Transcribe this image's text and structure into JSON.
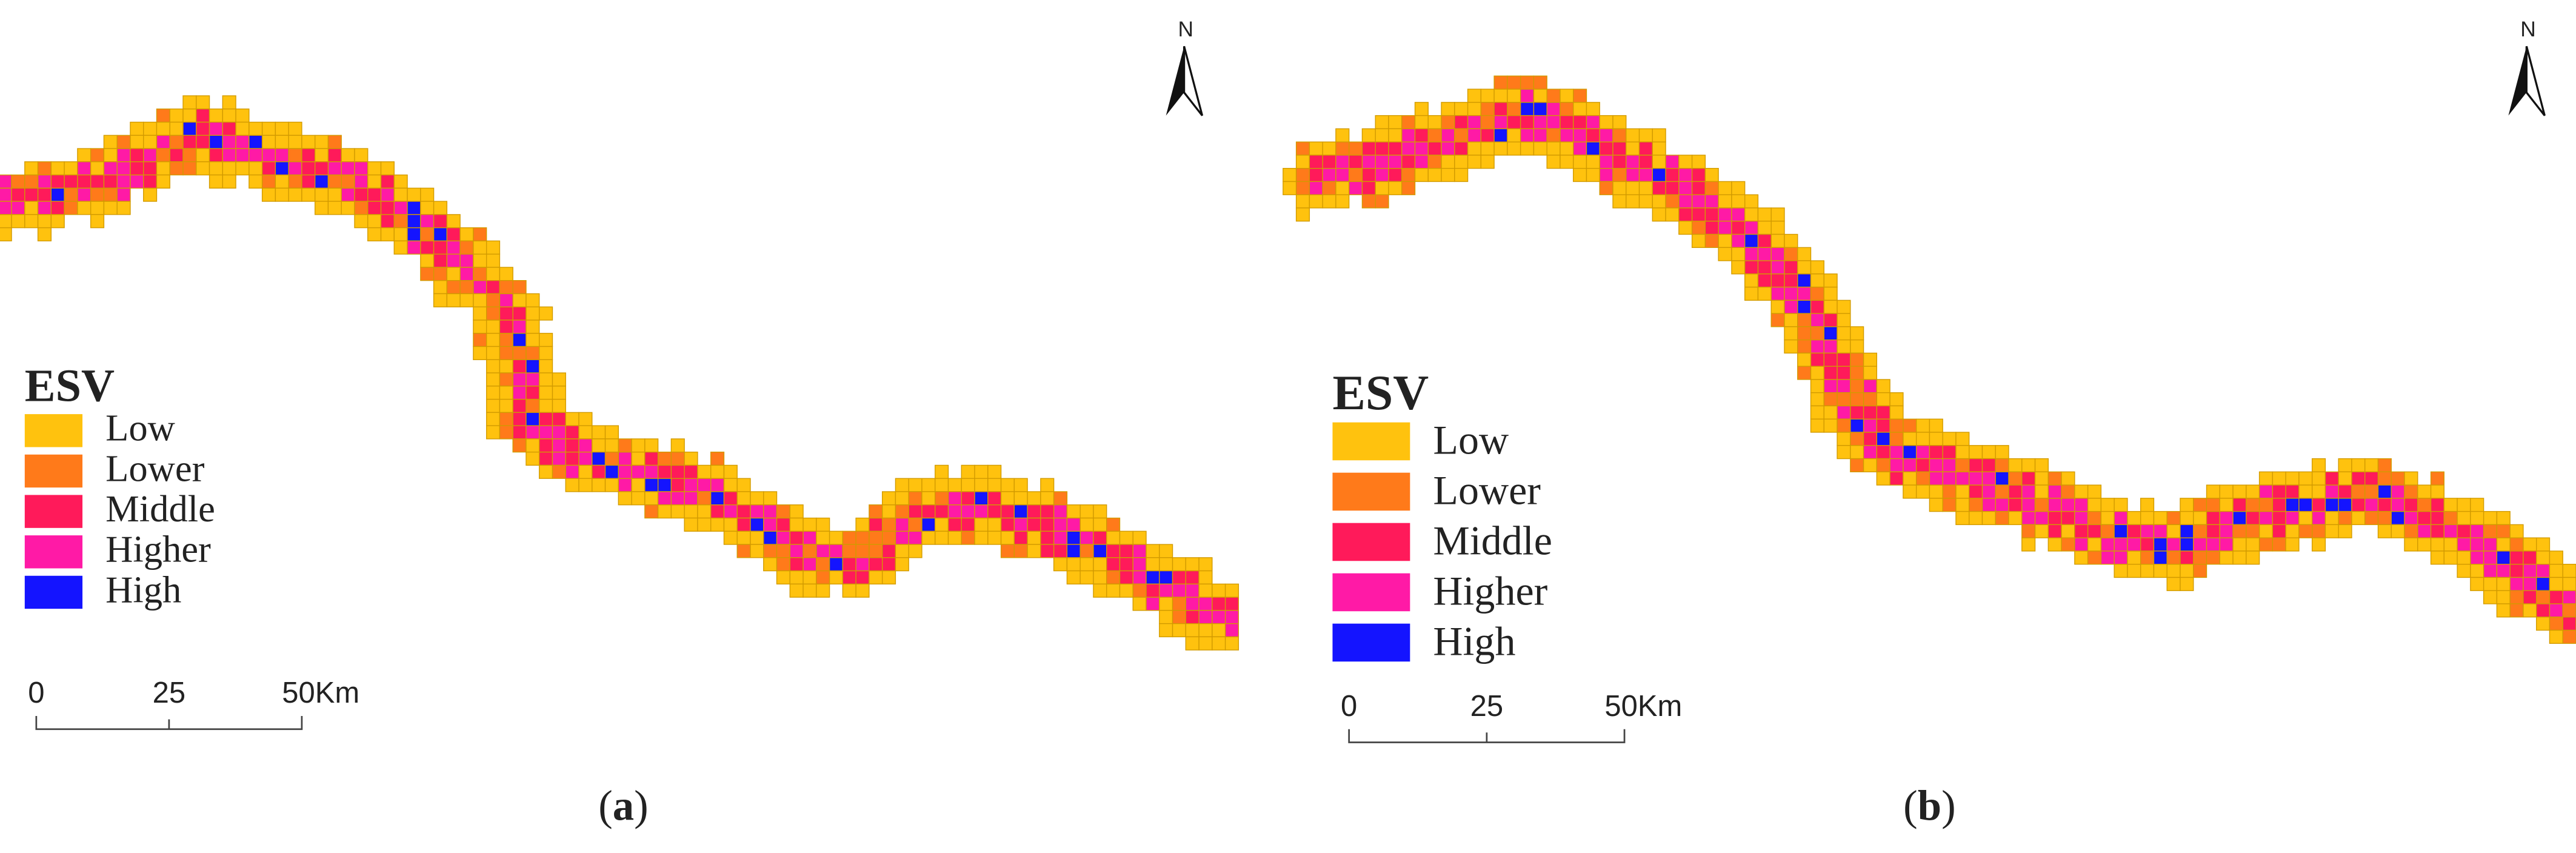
{
  "panels": [
    {
      "legend": {
        "title": "ESV",
        "items": [
          {
            "label": "Low",
            "color": "#ffc20e"
          },
          {
            "label": "Lower",
            "color": "#ff7a1a"
          },
          {
            "label": "Middle",
            "color": "#ff1a5a"
          },
          {
            "label": "Higher",
            "color": "#ff1aa6"
          },
          {
            "label": "High",
            "color": "#1414ff"
          }
        ]
      },
      "scale_labels": [
        "0",
        "25",
        "50Km"
      ],
      "north": "N",
      "caption": [
        "(",
        "a",
        ")"
      ]
    },
    {
      "legend": {
        "title": "ESV",
        "items": [
          {
            "label": "Low",
            "color": "#ffc20e"
          },
          {
            "label": "Lower",
            "color": "#ff7a1a"
          },
          {
            "label": "Middle",
            "color": "#ff1a5a"
          },
          {
            "label": "Higher",
            "color": "#ff1aa6"
          },
          {
            "label": "High",
            "color": "#1414ff"
          }
        ]
      },
      "scale_labels": [
        "0",
        "25",
        "50Km"
      ],
      "north": "N",
      "caption": [
        "(",
        "b",
        ")"
      ]
    }
  ]
}
